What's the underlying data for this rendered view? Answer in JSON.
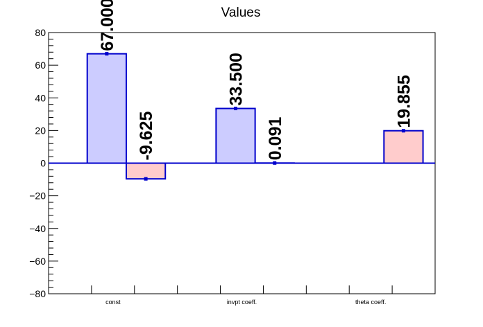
{
  "chart_data": {
    "type": "bar",
    "title": "Values",
    "categories": [
      "const",
      "invpt coeff.",
      "theta coeff."
    ],
    "bars": [
      {
        "category": "const",
        "slot": 0,
        "value": 67.0,
        "label": "67.000",
        "color": "#ccccff"
      },
      {
        "category": "const",
        "slot": 1,
        "value": -9.625,
        "label": "-9.625",
        "color": "#ffcccc"
      },
      {
        "category": "invpt coeff.",
        "slot": 0,
        "value": 33.5,
        "label": "33.500",
        "color": "#ccccff"
      },
      {
        "category": "invpt coeff.",
        "slot": 1,
        "value": 0.091,
        "label": "0.091",
        "color": "#ffcccc"
      },
      {
        "category": "theta coeff.",
        "slot": 1,
        "value": 19.855,
        "label": "19.855",
        "color": "#ffcccc"
      }
    ],
    "ylim": [
      -80,
      80
    ],
    "yticks": [
      -80,
      -60,
      -40,
      -20,
      0,
      20,
      40,
      60,
      80
    ],
    "ytick_labels": [
      "−80",
      "−60",
      "−40",
      "−20",
      "0",
      "20",
      "40",
      "60",
      "80"
    ],
    "xlabel": "",
    "ylabel": "",
    "grid": false,
    "outline_color": "#0000cc"
  }
}
